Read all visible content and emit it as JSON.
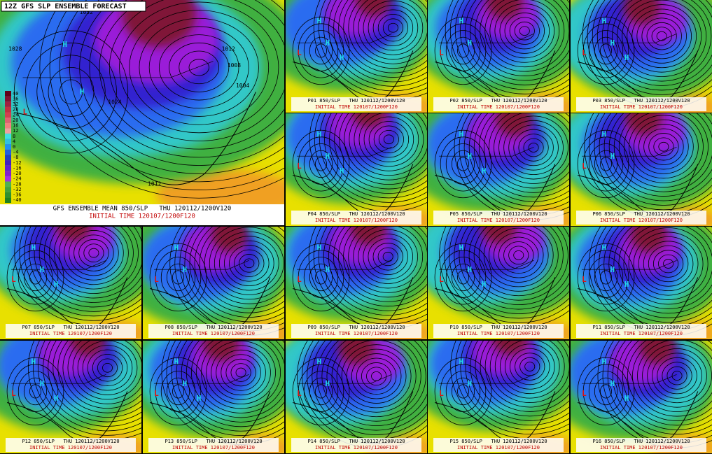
{
  "title": "12Z GFS SLP ENSEMBLE FORECAST",
  "colorbar": {
    "labels": [
      40,
      36,
      32,
      28,
      24,
      20,
      16,
      12,
      8,
      4,
      0,
      -4,
      -8,
      -12,
      -16,
      -20,
      -24,
      -28,
      -32,
      -36,
      -40
    ]
  },
  "main": {
    "caption": "GFS ENSEMBLE MEAN 850/SLP   THU 120112/1200V120",
    "init": "INITIAL TIME 120107/1200F120",
    "labels": [
      "H",
      "H",
      "L",
      "1028",
      "1032",
      "1024",
      "1012",
      "1008",
      "1004",
      "1012"
    ]
  },
  "panels": [
    {
      "caption": "P01 850/SLP   THU 120112/1200V120",
      "init": "INITIAL TIME 120107/1200F120",
      "labels": [
        "H",
        "H",
        "H",
        "L"
      ]
    },
    {
      "caption": "P02 850/SLP   THU 120112/1200V120",
      "init": "INITIAL TIME 120107/1200F120",
      "labels": [
        "H",
        "H",
        "L"
      ]
    },
    {
      "caption": "P03 850/SLP   THU 120112/1200V120",
      "init": "INITIAL TIME 120107/1200F120",
      "labels": [
        "H",
        "H",
        "H",
        "L"
      ]
    },
    {
      "caption": "P04 850/SLP   THU 120112/1200V120",
      "init": "INITIAL TIME 120107/1200F120",
      "labels": [
        "H",
        "H",
        "H",
        "L"
      ]
    },
    {
      "caption": "P05 850/SLP   THU 120112/1200V120",
      "init": "INITIAL TIME 120107/1200F120",
      "labels": [
        "H",
        "H",
        "H"
      ]
    },
    {
      "caption": "P06 850/SLP   THU 120112/1200V120",
      "init": "INITIAL TIME 120107/1200F120",
      "labels": [
        "H",
        "H",
        "L"
      ]
    },
    {
      "caption": "P07 850/SLP   THU 120112/1200V120",
      "init": "INITIAL TIME 120107/1200F120",
      "labels": [
        "H",
        "H",
        "H",
        "L"
      ]
    },
    {
      "caption": "P08 850/SLP   THU 120112/1200V120",
      "init": "INITIAL TIME 120107/1200F120",
      "labels": [
        "H",
        "H",
        "L"
      ]
    },
    {
      "caption": "P09 850/SLP   THU 120112/1200V120",
      "init": "INITIAL TIME 120107/1200F120",
      "labels": [
        "H",
        "H",
        "L"
      ]
    },
    {
      "caption": "P10 850/SLP   THU 120112/1200V120",
      "init": "INITIAL TIME 120107/1200F120",
      "labels": [
        "H",
        "H",
        "H",
        "L"
      ]
    },
    {
      "caption": "P11 850/SLP   THU 120112/1200V120",
      "init": "INITIAL TIME 120107/1200F120",
      "labels": [
        "H",
        "H",
        "H",
        "L"
      ]
    },
    {
      "caption": "P12 850/SLP   THU 120112/1200V120",
      "init": "INITIAL TIME 120107/1200F120",
      "labels": [
        "H",
        "H",
        "H",
        "L"
      ]
    },
    {
      "caption": "P13 850/SLP   THU 120112/1200V120",
      "init": "INITIAL TIME 120107/1200F120",
      "labels": [
        "H",
        "H",
        "H",
        "L"
      ]
    },
    {
      "caption": "P14 850/SLP   THU 120112/1200V120",
      "init": "INITIAL TIME 120107/1200F120",
      "labels": [
        "H",
        "H",
        "L"
      ]
    },
    {
      "caption": "P15 850/SLP   THU 120112/1200V120",
      "init": "INITIAL TIME 120107/1200F120",
      "labels": [
        "H",
        "H",
        "L"
      ]
    },
    {
      "caption": "P16 850/SLP   THU 120112/1200V120",
      "init": "INITIAL TIME 120107/1200F120",
      "labels": [
        "H",
        "H",
        "H",
        "L"
      ]
    }
  ]
}
